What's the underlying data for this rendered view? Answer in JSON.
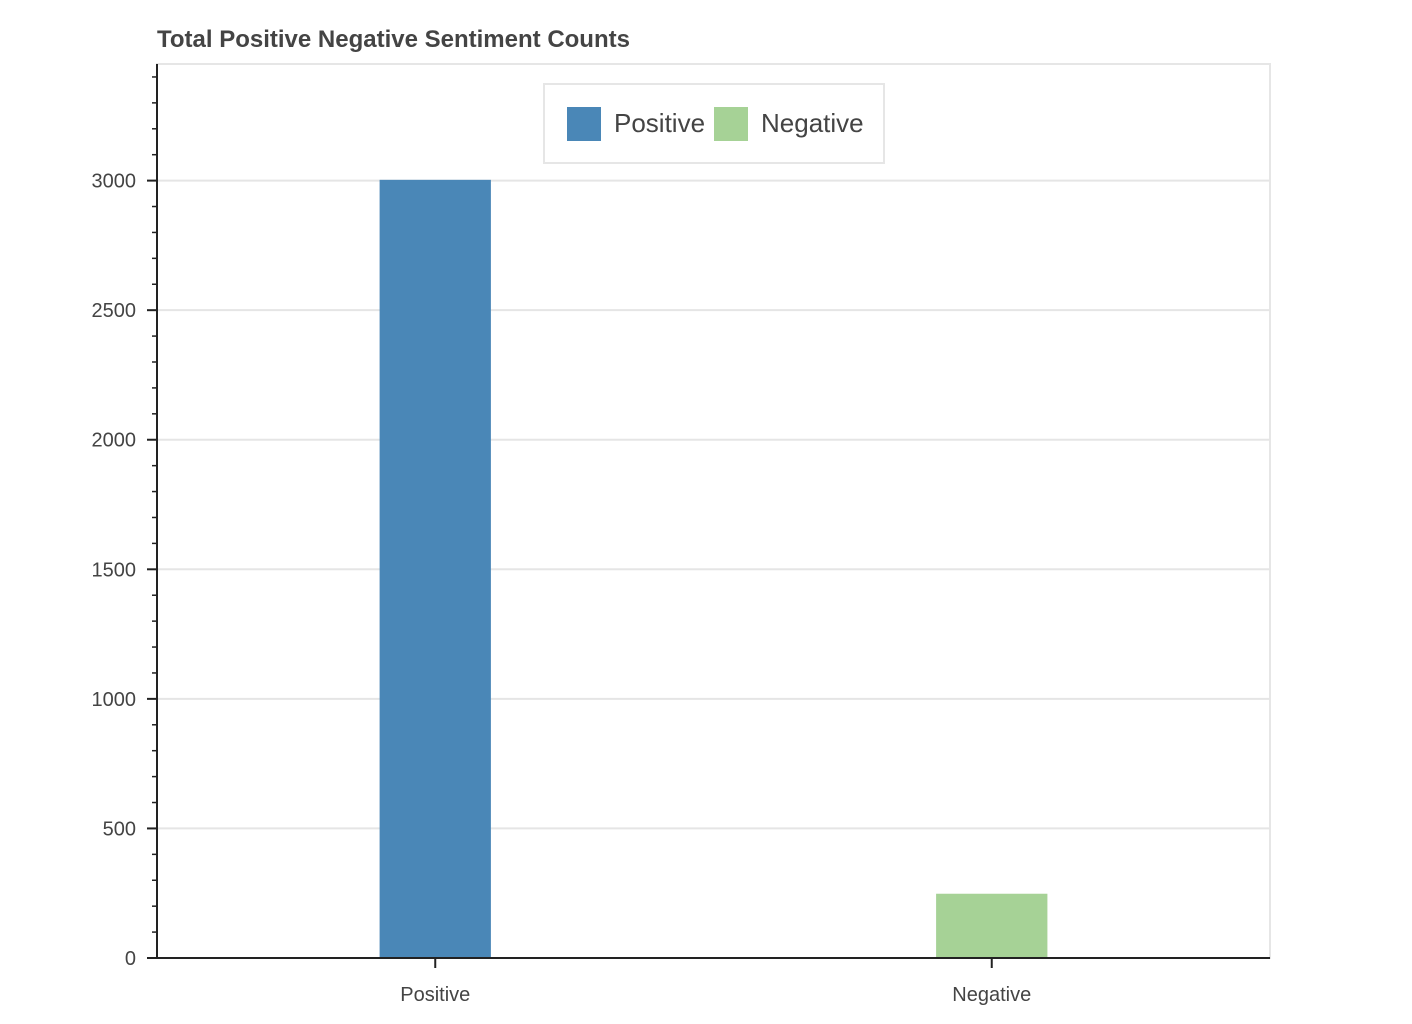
{
  "chart_data": {
    "type": "bar",
    "title": "Total Positive Negative Sentiment Counts",
    "categories": [
      "Positive",
      "Negative"
    ],
    "series": [
      {
        "name": "Positive",
        "color": "#4a87b7",
        "values": [
          3003,
          null
        ]
      },
      {
        "name": "Negative",
        "color": "#a6d296",
        "values": [
          null,
          248
        ]
      }
    ],
    "xlabel": "",
    "ylabel": "",
    "ylim": [
      0,
      3450
    ],
    "yticks": [
      0,
      500,
      1000,
      1500,
      2000,
      2500,
      3000
    ],
    "ytick_labels": [
      "0",
      "500",
      "1000",
      "1500",
      "2000",
      "2500",
      "3000"
    ],
    "minor_tick_step": 100,
    "grid": true,
    "legend": {
      "placement": "top-center",
      "entries": [
        {
          "label": "Positive",
          "color": "#4a87b7"
        },
        {
          "label": "Negative",
          "color": "#a6d296"
        }
      ]
    }
  }
}
